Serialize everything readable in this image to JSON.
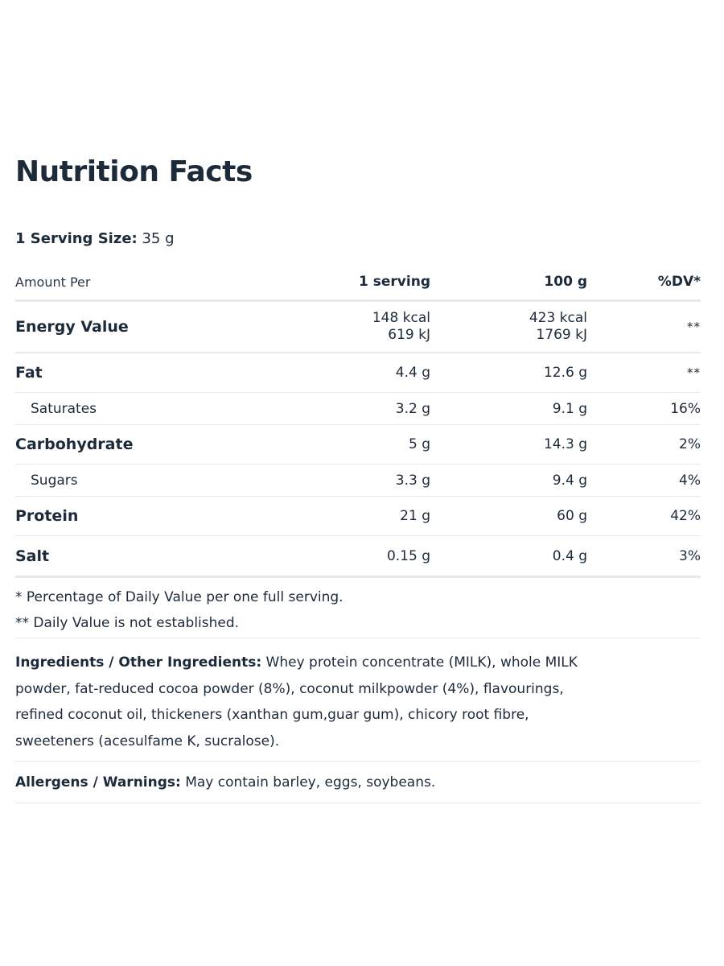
{
  "title": "Nutrition Facts",
  "serving": {
    "label": "1 Serving Size:",
    "value": "35 g"
  },
  "table": {
    "headers": {
      "name": "Amount Per",
      "per_serving": "1 serving",
      "per_100g": "100 g",
      "dv": "%DV*"
    },
    "energy": {
      "name": "Energy Value",
      "per_serving_kcal": "148 kcal",
      "per_serving_kj": "619 kJ",
      "per_100g_kcal": "423 kcal",
      "per_100g_kj": "1769 kJ",
      "dv": "**"
    },
    "rows": [
      {
        "name": "Fat",
        "per_serving": "4.4 g",
        "per_100g": "12.6 g",
        "dv": "**"
      },
      {
        "name": "Saturates",
        "per_serving": "3.2 g",
        "per_100g": "9.1 g",
        "dv": "16%"
      },
      {
        "name": "Carbohydrate",
        "per_serving": "5 g",
        "per_100g": "14.3 g",
        "dv": "2%"
      },
      {
        "name": "Sugars",
        "per_serving": "3.3 g",
        "per_100g": "9.4 g",
        "dv": "4%"
      },
      {
        "name": "Protein",
        "per_serving": "21 g",
        "per_100g": "60 g",
        "dv": "42%"
      },
      {
        "name": "Salt",
        "per_serving": "0.15 g",
        "per_100g": "0.4 g",
        "dv": "3%"
      }
    ]
  },
  "footnotes": {
    "one": "* Percentage of Daily Value per one full serving.",
    "two": "** Daily Value is not established."
  },
  "ingredients": {
    "label": "Ingredients / Other Ingredients:",
    "line1": "Whey protein concentrate (MILK), whole MILK",
    "line2": "powder, fat-reduced cocoa powder  (8%), coconut milkpowder  (4%), flavourings,",
    "line3": "refined coconut oil, thickeners  (xanthan gum,guar gum), chicory root fibre,",
    "line4": "sweeteners  (acesulfame K, sucralose)."
  },
  "allergens": {
    "label": "Allergens / Warnings:",
    "text": "May contain barley, eggs, soybeans."
  }
}
